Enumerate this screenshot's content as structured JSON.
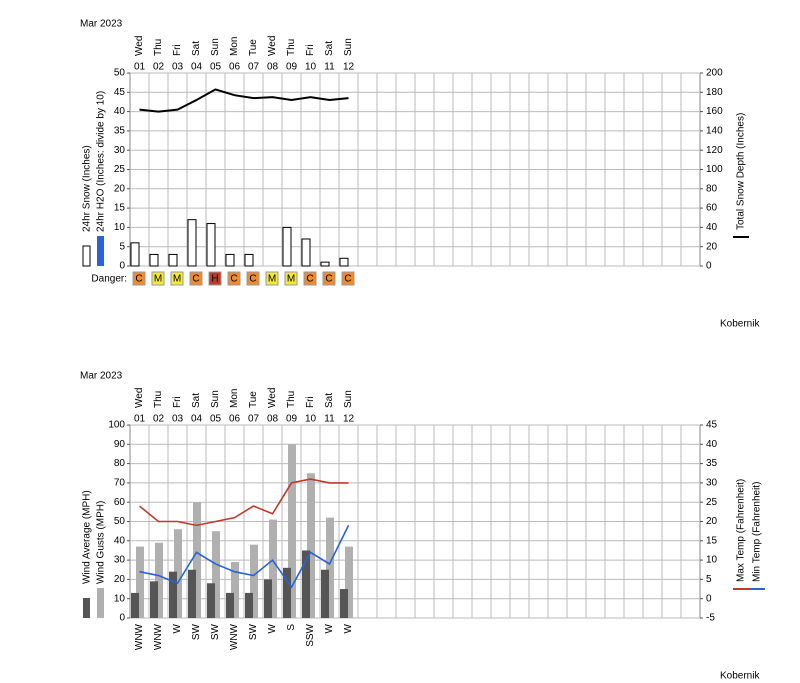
{
  "chart_data": [
    {
      "type": "bar_line",
      "title": "Mar 2023",
      "weekdays": [
        "Wed",
        "Thu",
        "Fri",
        "Sat",
        "Sun",
        "Mon",
        "Tue",
        "Wed",
        "Thu",
        "Fri",
        "Sat",
        "Sun"
      ],
      "categories": [
        "01",
        "02",
        "03",
        "04",
        "05",
        "06",
        "07",
        "08",
        "09",
        "10",
        "11",
        "12"
      ],
      "series": [
        {
          "name": "24hr Snow (Inches)",
          "type": "bar",
          "color": "#ffffff",
          "outline": "#000000",
          "values": [
            6,
            3,
            3,
            12,
            11,
            3,
            3,
            0,
            10,
            7,
            1,
            2
          ]
        },
        {
          "name": "24hr H2O (Inches: divide by 10)",
          "type": "bar",
          "color": "#2a62d9",
          "values": [
            null,
            null,
            null,
            null,
            null,
            null,
            null,
            null,
            null,
            null,
            null,
            null
          ]
        },
        {
          "name": "Total Snow Depth (Inches)",
          "type": "line",
          "axis": "y2",
          "color": "#000000",
          "values": [
            162,
            160,
            162,
            172,
            183,
            177,
            174,
            175,
            172,
            175,
            172,
            174
          ]
        }
      ],
      "ylim": [
        0,
        50
      ],
      "yticks": [
        0,
        5,
        10,
        15,
        20,
        25,
        30,
        35,
        40,
        45,
        50
      ],
      "y2lim": [
        0,
        200
      ],
      "y2ticks": [
        0,
        20,
        40,
        60,
        80,
        100,
        120,
        140,
        160,
        180,
        200
      ],
      "grid": true,
      "danger_label": "Danger:",
      "danger": [
        "C",
        "M",
        "M",
        "C",
        "H",
        "C",
        "C",
        "M",
        "M",
        "C",
        "C",
        "C"
      ],
      "danger_colors": {
        "C": "#ee8a30",
        "M": "#f2ea3a",
        "H": "#c0392b"
      },
      "note": "Kobernik"
    },
    {
      "type": "bar_line",
      "title": "Mar 2023",
      "weekdays": [
        "Wed",
        "Thu",
        "Fri",
        "Sat",
        "Sun",
        "Mon",
        "Tue",
        "Wed",
        "Thu",
        "Fri",
        "Sat",
        "Sun"
      ],
      "categories": [
        "01",
        "02",
        "03",
        "04",
        "05",
        "06",
        "07",
        "08",
        "09",
        "10",
        "11",
        "12"
      ],
      "series": [
        {
          "name": "Wind Average (MPH)",
          "type": "bar",
          "color": "#555555",
          "values": [
            13,
            19,
            24,
            25,
            18,
            13,
            13,
            20,
            26,
            35,
            25,
            15
          ]
        },
        {
          "name": "Wind Gusts (MPH)",
          "type": "bar",
          "color": "#b0b0b0",
          "values": [
            37,
            39,
            46,
            60,
            45,
            29,
            38,
            51,
            90,
            75,
            52,
            37
          ]
        },
        {
          "name": "Max Temp (Fahrenheit)",
          "type": "line",
          "axis": "y2",
          "color": "#c0392b",
          "values": [
            24,
            20,
            20,
            19,
            20,
            21,
            24,
            22,
            30,
            31,
            30,
            30
          ]
        },
        {
          "name": "Min Temp (Fahrenheit)",
          "type": "line",
          "axis": "y2",
          "color": "#2a62d9",
          "values": [
            7,
            6,
            4,
            12,
            9,
            7,
            6,
            10,
            3,
            12,
            9,
            19
          ]
        }
      ],
      "ylim": [
        0,
        100
      ],
      "yticks": [
        0,
        10,
        20,
        30,
        40,
        50,
        60,
        70,
        80,
        90,
        100
      ],
      "y2lim": [
        -5,
        45
      ],
      "y2ticks": [
        -5,
        0,
        5,
        10,
        15,
        20,
        25,
        30,
        35,
        40,
        45
      ],
      "grid": true,
      "wind_direction": [
        "WNW",
        "WNW",
        "W",
        "SW",
        "SW",
        "WNW",
        "SW",
        "W",
        "S",
        "SSW",
        "W",
        "W"
      ],
      "note": "Kobernik"
    }
  ]
}
